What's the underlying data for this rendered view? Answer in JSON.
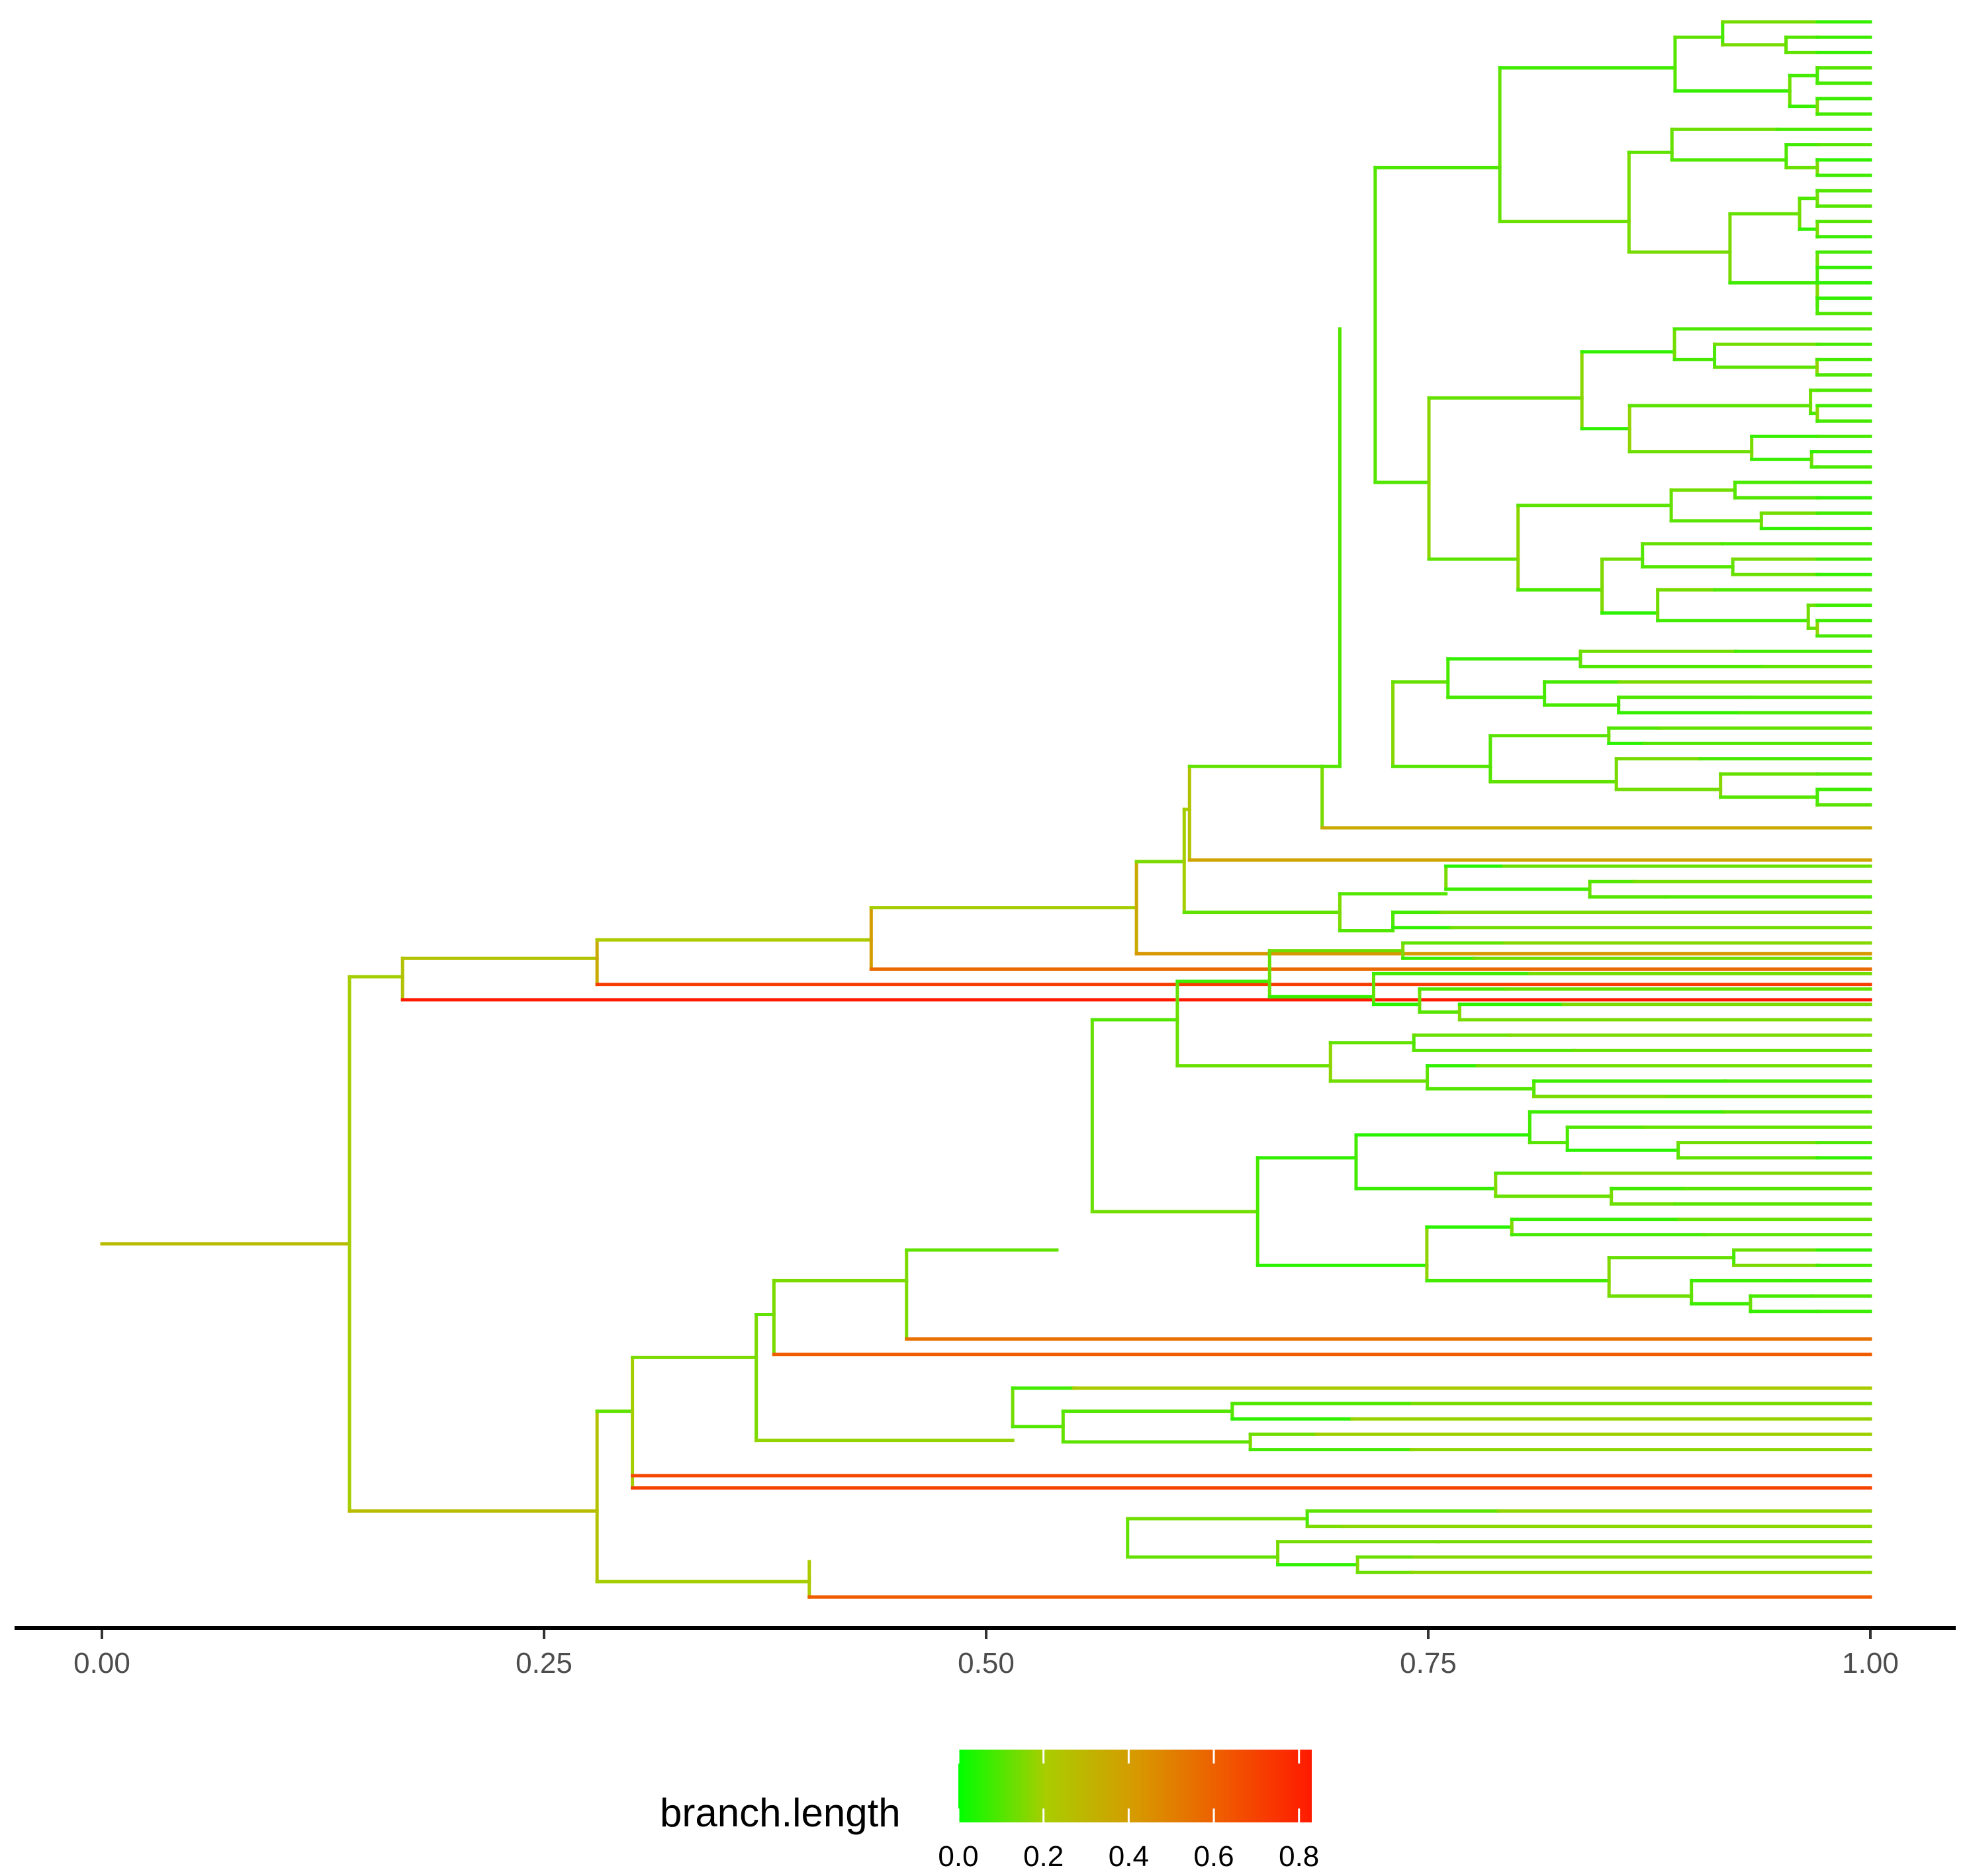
{
  "chart_data": {
    "type": "dendrogram",
    "title": "",
    "xlabel": "",
    "ylabel": "",
    "orientation": "left-to-right",
    "xlim": [
      0,
      1
    ],
    "x_ticks": [
      0,
      0.25,
      0.5,
      0.75,
      1
    ],
    "x_tick_labels": [
      "0.00",
      "0.25",
      "0.50",
      "0.75",
      "1.00"
    ],
    "leaf_count": 100,
    "root": {
      "x": 0.0,
      "y": 79.6,
      "x_end": 0.14,
      "branch_length": 0.28
    },
    "branches": [
      {
        "name": "v-root-split",
        "x": 0.14,
        "y1": 62.2,
        "y2": 97.0,
        "bl": 0.2
      },
      {
        "name": "h-upper",
        "x1": 0.14,
        "x2": 0.17,
        "y": 62.2,
        "bl": 0.2
      },
      {
        "name": "h-lower",
        "x1": 0.14,
        "x2": 0.28,
        "y": 97.0,
        "bl": 0.28
      },
      {
        "name": "v-upper-a",
        "x": 0.17,
        "y1": 61.0,
        "y2": 63.7,
        "bl": 0.25
      },
      {
        "name": "h-long-red",
        "x1": 0.17,
        "x2": 1.0,
        "y": 63.7,
        "bl": 0.83
      },
      {
        "name": "h-a",
        "x1": 0.17,
        "x2": 0.28,
        "y": 61.0,
        "bl": 0.25
      },
      {
        "name": "v-a",
        "x": 0.28,
        "y1": 59.8,
        "y2": 62.7,
        "bl": 0.35
      },
      {
        "name": "h-a-orange",
        "x1": 0.28,
        "x2": 1.0,
        "y": 62.7,
        "bl": 0.72
      },
      {
        "name": "h-b",
        "x1": 0.28,
        "x2": 0.435,
        "y": 59.8,
        "bl": 0.22
      },
      {
        "name": "v-b",
        "x": 0.435,
        "y1": 57.7,
        "y2": 61.7,
        "bl": 0.4
      },
      {
        "name": "h-b-orange",
        "x1": 0.435,
        "x2": 1.0,
        "y": 61.7,
        "bl": 0.57
      },
      {
        "name": "h-c",
        "x1": 0.435,
        "x2": 0.585,
        "y": 57.7,
        "bl": 0.2
      },
      {
        "name": "v-c",
        "x": 0.585,
        "y1": 54.7,
        "y2": 60.7,
        "bl": 0.35
      },
      {
        "name": "h-c-lo",
        "x1": 0.585,
        "x2": 1.0,
        "y": 60.7,
        "bl": 0.42
      },
      {
        "name": "h-d",
        "x1": 0.585,
        "x2": 0.612,
        "y": 54.7,
        "bl": 0.15
      },
      {
        "name": "v-d",
        "x": 0.612,
        "y1": 51.3,
        "y2": 58.0,
        "bl": 0.2
      },
      {
        "name": "h-e",
        "x1": 0.612,
        "x2": 0.615,
        "y": 51.3,
        "bl": 0.2
      },
      {
        "name": "v-e",
        "x": 0.615,
        "y1": 48.5,
        "y2": 54.6,
        "bl": 0.25
      },
      {
        "name": "h-e-lo",
        "x1": 0.615,
        "x2": 1.0,
        "y": 54.6,
        "bl": 0.38
      },
      {
        "name": "h-f",
        "x1": 0.615,
        "x2": 0.69,
        "y": 48.5,
        "bl": 0.12
      },
      {
        "name": "h-g",
        "x1": 0.612,
        "x2": 0.7,
        "y": 58.0,
        "bl": 0.12
      },
      {
        "name": "v-g",
        "x": 0.7,
        "y1": 56.8,
        "y2": 59.2,
        "bl": 0.15
      },
      {
        "name": "h-g-a",
        "x1": 0.7,
        "x2": 0.76,
        "y": 56.8,
        "bl": 0.1
      },
      {
        "name": "h-g-b",
        "x1": 0.7,
        "x2": 0.73,
        "y": 59.2,
        "bl": 0.1
      }
    ],
    "legend": {
      "title": "branch.length",
      "placement": "bottom-center",
      "type": "colorbar",
      "range": [
        0,
        0.83
      ],
      "ticks": [
        0,
        0.2,
        0.4,
        0.6,
        0.8
      ],
      "tick_labels": [
        "0.0",
        "0.2",
        "0.4",
        "0.6",
        "0.8"
      ],
      "colors": [
        "#00ff00",
        "#aacc00",
        "#d69a00",
        "#f05a00",
        "#ff1a00"
      ]
    }
  }
}
